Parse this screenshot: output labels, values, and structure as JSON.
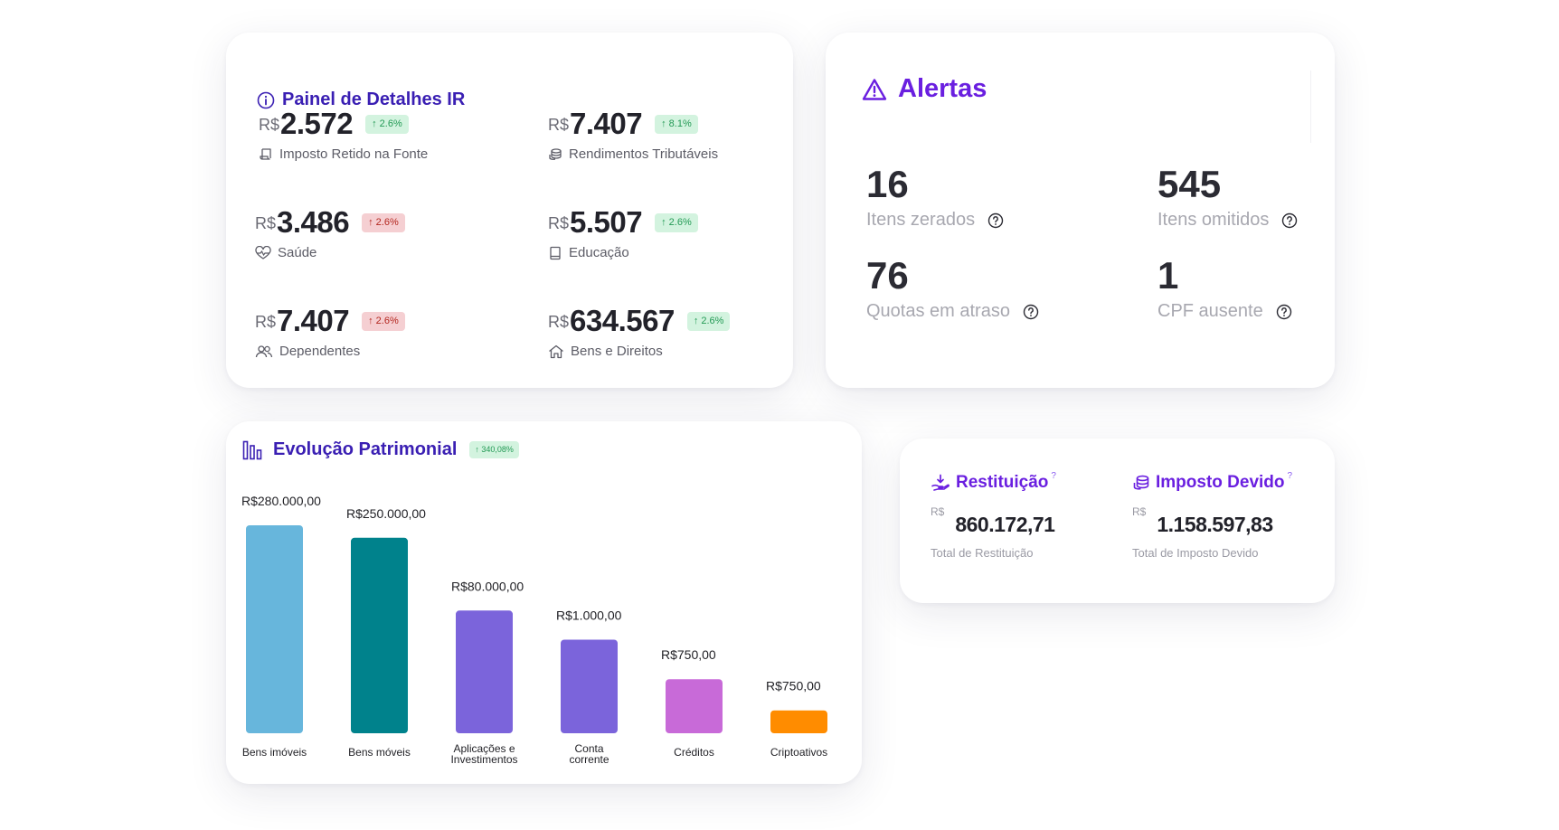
{
  "painel": {
    "title": "Painel de Detalhes IR",
    "currency": "R$",
    "items": [
      {
        "value": "2.572",
        "delta": "↑ 2.6%",
        "trend": "up",
        "label": "Imposto Retido na Fonte",
        "icon": "receipt-icon"
      },
      {
        "value": "7.407",
        "delta": "↑ 8.1%",
        "trend": "up",
        "label": "Rendimentos Tributáveis",
        "icon": "coins-icon"
      },
      {
        "value": "3.486",
        "delta": "↑ 2.6%",
        "trend": "down",
        "label": "Saúde",
        "icon": "heartbeat-icon"
      },
      {
        "value": "5.507",
        "delta": "↑ 2.6%",
        "trend": "up",
        "label": "Educação",
        "icon": "book-icon"
      },
      {
        "value": "7.407",
        "delta": "↑ 2.6%",
        "trend": "down",
        "label": "Dependentes",
        "icon": "users-icon"
      },
      {
        "value": "634.567",
        "delta": "↑ 2.6%",
        "trend": "up",
        "label": "Bens e Direitos",
        "icon": "house-icon"
      }
    ]
  },
  "alertas": {
    "title": "Alertas",
    "items": [
      {
        "value": "16",
        "label": "Itens zerados"
      },
      {
        "value": "545",
        "label": "Itens omitidos"
      },
      {
        "value": "76",
        "label": "Quotas em atraso"
      },
      {
        "value": "1",
        "label": "CPF ausente"
      }
    ]
  },
  "evolucao": {
    "title": "Evolução Patrimonial",
    "badge": "↑ 340,08%"
  },
  "chart_data": {
    "type": "bar",
    "categories": [
      "Bens imóveis",
      "Bens móveis",
      "Aplicações e Investimentos",
      "Conta corrente",
      "Créditos",
      "Criptoativos"
    ],
    "category_lines": [
      [
        "Bens imóveis"
      ],
      [
        "Bens móveis"
      ],
      [
        "Aplicações e",
        "Investimentos"
      ],
      [
        "Conta",
        "corrente"
      ],
      [
        "Créditos"
      ],
      [
        "Criptoativos"
      ]
    ],
    "values": [
      280000,
      250000,
      80000,
      1000,
      750,
      750
    ],
    "data_labels": [
      "R$280.000,00",
      "R$250.000,00",
      "R$80.000,00",
      "R$1.000,00",
      "R$750,00",
      "R$750,00"
    ],
    "bar_fill_fraction": [
      1.0,
      0.94,
      0.59,
      0.45,
      0.26,
      0.11
    ],
    "colors": [
      "#67b6dc",
      "#00828c",
      "#7b64db",
      "#7b64db",
      "#c86ad8",
      "#ff8c00"
    ]
  },
  "resumo": {
    "currency": "R$",
    "restituicao": {
      "title": "Restituição",
      "value": "860.172,71",
      "sub": "Total de Restituição"
    },
    "imposto": {
      "title": "Imposto Devido",
      "value": "1.158.597,83",
      "sub": "Total de Imposto Devido"
    },
    "help_mark": "?"
  }
}
